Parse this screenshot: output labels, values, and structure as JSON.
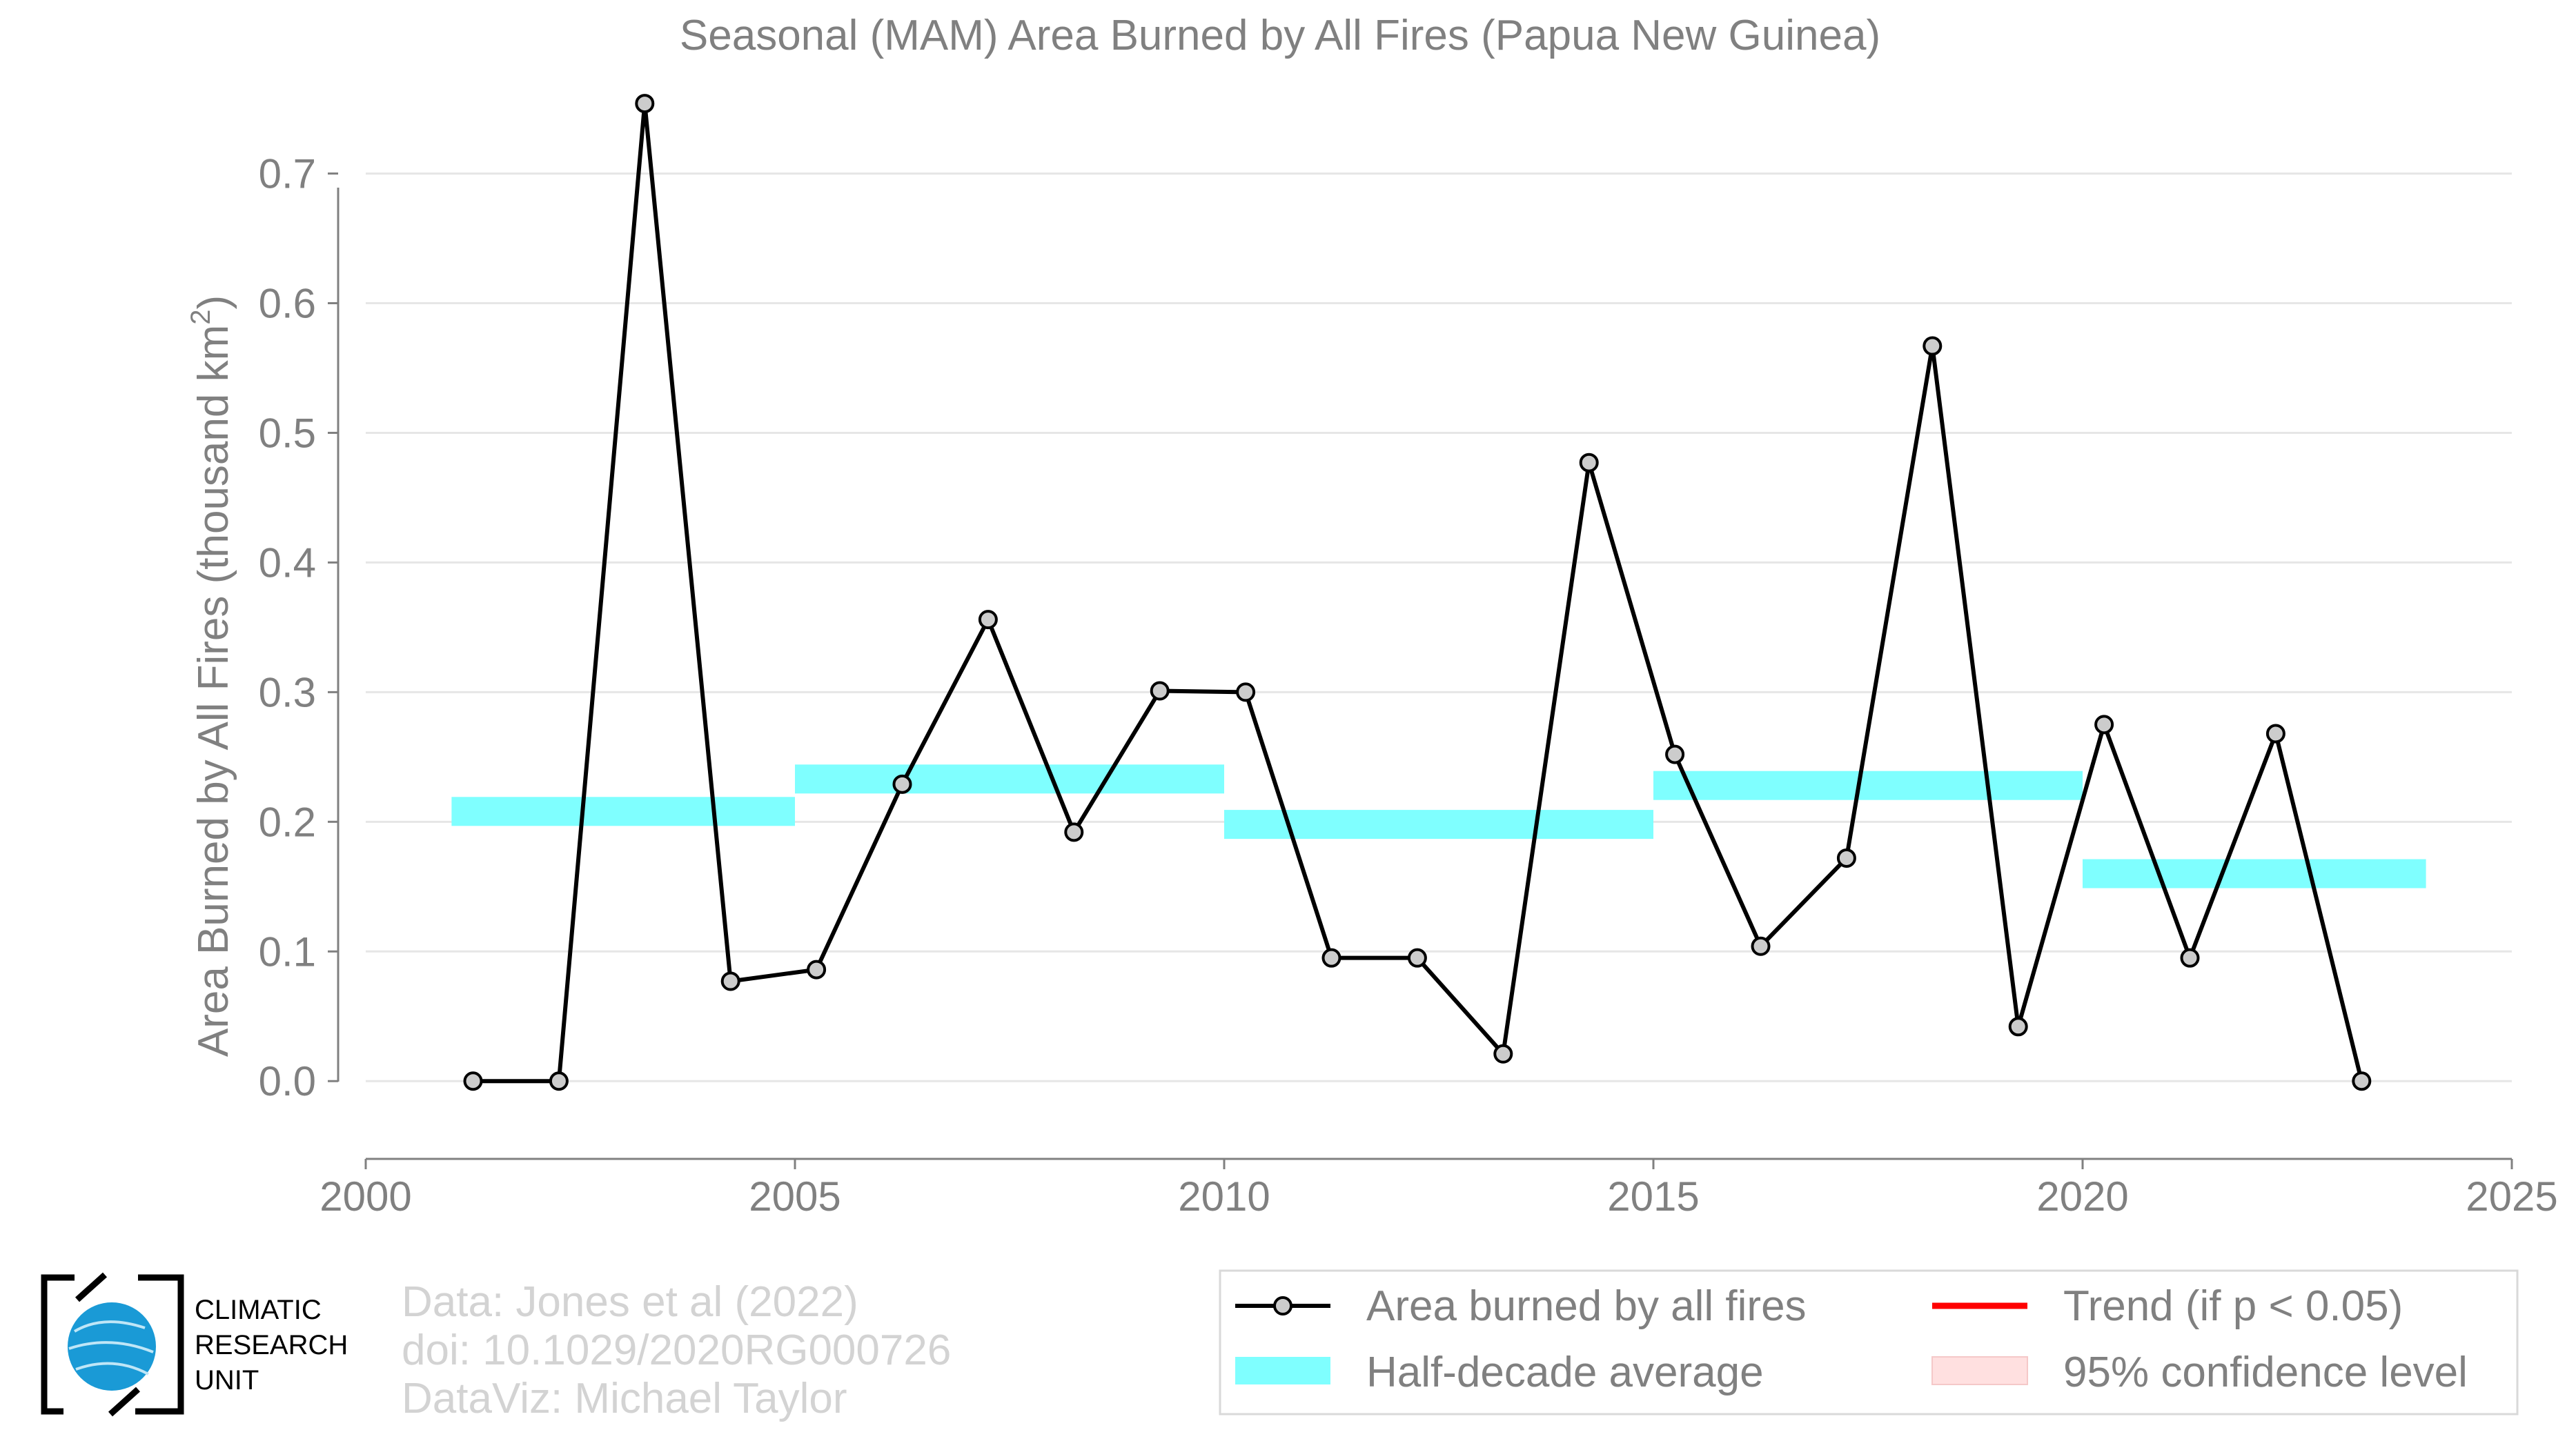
{
  "chart_data": {
    "type": "line",
    "title": "Seasonal (MAM) Area Burned by All Fires (Papua New Guinea)",
    "xlabel": "",
    "ylabel_main": "Area Burned by All Fires (thousand km",
    "ylabel_sup": "2",
    "ylabel_end": ")",
    "xlim": [
      2000,
      2025
    ],
    "ylim": [
      -0.06,
      0.77
    ],
    "xticks": [
      2000,
      2005,
      2010,
      2015,
      2020,
      2025
    ],
    "yticks": [
      0.0,
      0.1,
      0.2,
      0.3,
      0.4,
      0.5,
      0.6,
      0.7
    ],
    "ytick_labels": [
      "0.0",
      "0.1",
      "0.2",
      "0.3",
      "0.4",
      "0.5",
      "0.6",
      "0.7"
    ],
    "grid": "horizontal",
    "series": [
      {
        "name": "Area burned by all fires",
        "color": "#000000",
        "marker_fill": "#cccccc",
        "x": [
          2001.25,
          2002.25,
          2003.25,
          2004.25,
          2005.25,
          2006.25,
          2007.25,
          2008.25,
          2009.25,
          2010.25,
          2011.25,
          2012.25,
          2013.25,
          2014.25,
          2015.25,
          2016.25,
          2017.25,
          2018.25,
          2019.25,
          2020.25,
          2021.25,
          2022.25,
          2023.25
        ],
        "y": [
          0.0,
          0.0,
          0.754,
          0.077,
          0.086,
          0.229,
          0.356,
          0.192,
          0.301,
          0.3,
          0.095,
          0.095,
          0.021,
          0.477,
          0.252,
          0.104,
          0.172,
          0.567,
          0.042,
          0.275,
          0.095,
          0.268,
          0.0
        ]
      }
    ],
    "half_decade_averages": {
      "name": "Half-decade average",
      "color": "#7fffff",
      "segments": [
        {
          "x0": 2001,
          "x1": 2005,
          "y": 0.208
        },
        {
          "x0": 2005,
          "x1": 2010,
          "y": 0.233
        },
        {
          "x0": 2010,
          "x1": 2015,
          "y": 0.198
        },
        {
          "x0": 2015,
          "x1": 2020,
          "y": 0.228
        },
        {
          "x0": 2020,
          "x1": 2024,
          "y": 0.16
        }
      ]
    },
    "legend": {
      "placement": "bottom-right",
      "entries": [
        {
          "label": "Area burned by all fires",
          "kind": "line-marker",
          "color": "#000000"
        },
        {
          "label": "Trend (if p < 0.05)",
          "kind": "line",
          "color": "#ff0000"
        },
        {
          "label": "Half-decade average",
          "kind": "band",
          "color": "#7fffff"
        },
        {
          "label": "95% confidence level",
          "kind": "band",
          "color": "#ffe0e0"
        }
      ]
    }
  },
  "credits": {
    "line1": "Data: Jones et al (2022)",
    "line2": "doi: 10.1029/2020RG000726",
    "line3": "DataViz: Michael Taylor"
  },
  "logo": {
    "line1": "CLIMATIC",
    "line2": "RESEARCH",
    "line3": "UNIT",
    "color": "#1a9ad6"
  }
}
